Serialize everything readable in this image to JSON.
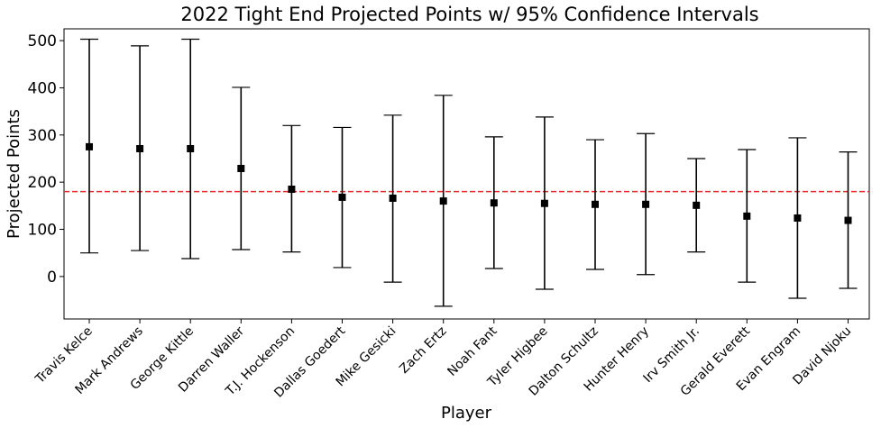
{
  "chart_data": {
    "type": "errorbar",
    "title": "2022 Tight End Projected Points w/ 95% Confidence Intervals",
    "xlabel": "Player",
    "ylabel": "Projected Points",
    "ylim": [
      -90,
      525
    ],
    "yticks": [
      0,
      100,
      200,
      300,
      400,
      500
    ],
    "grid": false,
    "reference_line": {
      "value": 180,
      "style": "dashed",
      "color": "#e8282b"
    },
    "marker_color": "#000000",
    "categories": [
      "Travis Kelce",
      "Mark Andrews",
      "George Kittle",
      "Darren Waller",
      "T.J. Hockenson",
      "Dallas Goedert",
      "Mike Gesicki",
      "Zach Ertz",
      "Noah Fant",
      "Tyler Higbee",
      "Dalton Schultz",
      "Hunter Henry",
      "Irv Smith Jr.",
      "Gerald Everett",
      "Evan Engram",
      "David Njoku"
    ],
    "values": [
      275,
      271,
      271,
      229,
      185,
      168,
      166,
      160,
      156,
      155,
      153,
      153,
      151,
      128,
      124,
      119
    ],
    "lower": [
      50,
      55,
      38,
      57,
      52,
      19,
      -12,
      -63,
      17,
      -27,
      15,
      4,
      52,
      -12,
      -46,
      -25
    ],
    "upper": [
      503,
      489,
      503,
      401,
      320,
      316,
      342,
      384,
      296,
      338,
      290,
      303,
      250,
      269,
      294,
      264
    ]
  }
}
